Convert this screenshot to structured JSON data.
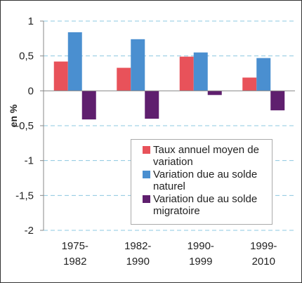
{
  "chart_data": {
    "type": "bar",
    "categories": [
      "1975-1982",
      "1982-1990",
      "1990-1999",
      "1999-2010"
    ],
    "series": [
      {
        "name": "Taux annuel moyen de variation",
        "color": "#e8525a",
        "values": [
          0.42,
          0.33,
          0.49,
          0.19
        ]
      },
      {
        "name": "Variation due au solde naturel",
        "color": "#4a8fd0",
        "values": [
          0.84,
          0.74,
          0.55,
          0.47
        ]
      },
      {
        "name": "Variation due au solde migratoire",
        "color": "#5f1f6e",
        "values": [
          -0.41,
          -0.4,
          -0.06,
          -0.28
        ]
      }
    ],
    "ylabel": "en %",
    "ylim": [
      -2,
      1
    ],
    "yticks": [
      -2,
      {
        "value": -1.5,
        "label": "-1,5"
      },
      -1,
      {
        "value": -0.5,
        "label": "-0,5"
      },
      0,
      {
        "value": 0.5,
        "label": "0,5"
      },
      1
    ],
    "grid": true
  }
}
